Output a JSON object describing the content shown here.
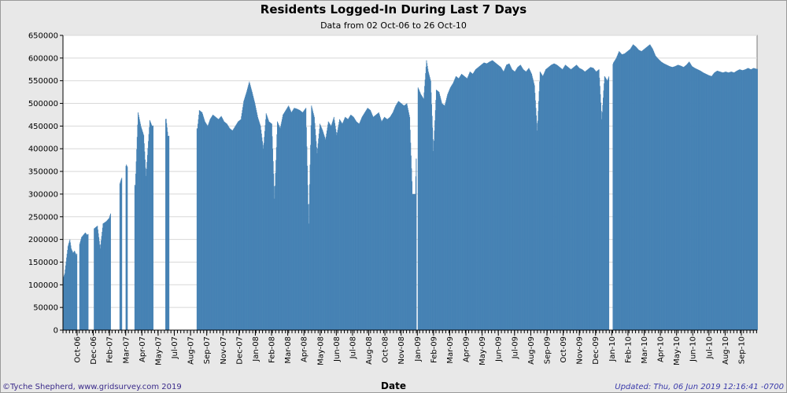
{
  "credit": "©Tyche Shepherd, www.gridsurvey.com 2019",
  "updated": "Updated: Thu, 06 Jun 2019 12:16:41 -0700",
  "colors": {
    "bar": "#4682b4",
    "plot_bg": "#ffffff",
    "page_bg": "#e8e8e8",
    "grid": "#d8d8d8"
  },
  "chart_data": {
    "type": "bar",
    "title": "Residents Logged-In During Last 7 Days",
    "subtitle": "Data from 02 Oct-06 to 26 Oct-10",
    "xlabel": "Date",
    "ylabel": "",
    "ylim": [
      0,
      650000
    ],
    "yticks": [
      0,
      50000,
      100000,
      150000,
      200000,
      250000,
      300000,
      350000,
      400000,
      450000,
      500000,
      550000,
      600000,
      650000
    ],
    "xticks": [
      "Oct-06",
      "Dec-06",
      "Feb-07",
      "Mar-07",
      "Apr-07",
      "May-07",
      "Jul-07",
      "Aug-07",
      "Sep-07",
      "Nov-07",
      "Dec-07",
      "Jan-08",
      "Feb-08",
      "Mar-08",
      "Apr-08",
      "May-08",
      "Jun-08",
      "Jul-08",
      "Aug-08",
      "Oct-08",
      "Nov-08",
      "Jan-09",
      "Feb-09",
      "Mar-09",
      "Apr-09",
      "May-09",
      "Jun-09",
      "Jul-09",
      "Aug-09",
      "Sep-09",
      "Oct-09",
      "Nov-09",
      "Dec-09",
      "Jan-10",
      "Feb-10",
      "Mar-10",
      "Apr-10",
      "May-10",
      "Jun-10",
      "Jul-10",
      "Aug-10",
      "Sep-10"
    ],
    "grid": true,
    "legend": "none",
    "x_range": [
      "2006-10-02",
      "2010-10-26"
    ],
    "points": [
      [
        "2006-10-02",
        115000
      ],
      [
        "2006-10-05",
        125000
      ],
      [
        "2006-10-09",
        160000
      ],
      [
        "2006-10-12",
        185000
      ],
      [
        "2006-10-16",
        200000
      ],
      [
        "2006-10-19",
        180000
      ],
      [
        "2006-10-23",
        170000
      ],
      [
        "2006-10-26",
        175000
      ],
      [
        "2006-10-30",
        165000
      ],
      [
        "2006-11-06",
        190000
      ],
      [
        "2006-11-10",
        205000
      ],
      [
        "2006-11-14",
        210000
      ],
      [
        "2006-11-18",
        215000
      ],
      [
        "2006-11-22",
        210000
      ],
      [
        "2006-12-08",
        225000
      ],
      [
        "2006-12-14",
        230000
      ],
      [
        "2006-12-20",
        180000
      ],
      [
        "2006-12-26",
        235000
      ],
      [
        "2007-01-02",
        240000
      ],
      [
        "2007-01-08",
        247000
      ],
      [
        "2007-02-02",
        330000
      ],
      [
        "2007-02-14",
        365000
      ],
      [
        "2007-03-05",
        318000
      ],
      [
        "2007-03-11",
        480000
      ],
      [
        "2007-03-17",
        450000
      ],
      [
        "2007-03-23",
        430000
      ],
      [
        "2007-03-28",
        340000
      ],
      [
        "2007-04-05",
        463000
      ],
      [
        "2007-04-10",
        450000
      ],
      [
        "2007-05-10",
        466000
      ],
      [
        "2007-05-14",
        428000
      ],
      [
        "2007-07-16",
        445000
      ],
      [
        "2007-07-20",
        485000
      ],
      [
        "2007-07-26",
        480000
      ],
      [
        "2007-08-01",
        460000
      ],
      [
        "2007-08-07",
        450000
      ],
      [
        "2007-08-12",
        465000
      ],
      [
        "2007-08-18",
        475000
      ],
      [
        "2007-08-24",
        470000
      ],
      [
        "2007-08-30",
        465000
      ],
      [
        "2007-09-05",
        472000
      ],
      [
        "2007-09-11",
        460000
      ],
      [
        "2007-09-17",
        455000
      ],
      [
        "2007-09-23",
        445000
      ],
      [
        "2007-09-29",
        440000
      ],
      [
        "2007-10-05",
        450000
      ],
      [
        "2007-10-11",
        460000
      ],
      [
        "2007-10-17",
        465000
      ],
      [
        "2007-10-23",
        505000
      ],
      [
        "2007-10-29",
        525000
      ],
      [
        "2007-11-04",
        548000
      ],
      [
        "2007-11-10",
        525000
      ],
      [
        "2007-11-16",
        500000
      ],
      [
        "2007-11-22",
        470000
      ],
      [
        "2007-11-28",
        450000
      ],
      [
        "2007-12-04",
        400000
      ],
      [
        "2007-12-10",
        478000
      ],
      [
        "2007-12-16",
        460000
      ],
      [
        "2007-12-22",
        455000
      ],
      [
        "2007-12-28",
        290000
      ],
      [
        "2008-01-03",
        460000
      ],
      [
        "2008-01-09",
        445000
      ],
      [
        "2008-01-15",
        475000
      ],
      [
        "2008-01-21",
        485000
      ],
      [
        "2008-01-27",
        495000
      ],
      [
        "2008-02-02",
        480000
      ],
      [
        "2008-02-08",
        490000
      ],
      [
        "2008-02-14",
        488000
      ],
      [
        "2008-02-20",
        485000
      ],
      [
        "2008-02-26",
        480000
      ],
      [
        "2008-03-04",
        490000
      ],
      [
        "2008-03-10",
        235000
      ],
      [
        "2008-03-16",
        495000
      ],
      [
        "2008-03-22",
        470000
      ],
      [
        "2008-03-28",
        390000
      ],
      [
        "2008-04-03",
        455000
      ],
      [
        "2008-04-09",
        440000
      ],
      [
        "2008-04-15",
        420000
      ],
      [
        "2008-04-21",
        460000
      ],
      [
        "2008-04-27",
        450000
      ],
      [
        "2008-05-03",
        470000
      ],
      [
        "2008-05-09",
        430000
      ],
      [
        "2008-05-15",
        465000
      ],
      [
        "2008-05-21",
        455000
      ],
      [
        "2008-05-27",
        470000
      ],
      [
        "2008-06-02",
        465000
      ],
      [
        "2008-06-08",
        475000
      ],
      [
        "2008-06-14",
        470000
      ],
      [
        "2008-06-20",
        460000
      ],
      [
        "2008-06-26",
        455000
      ],
      [
        "2008-07-02",
        470000
      ],
      [
        "2008-07-08",
        480000
      ],
      [
        "2008-07-14",
        490000
      ],
      [
        "2008-07-20",
        485000
      ],
      [
        "2008-07-26",
        470000
      ],
      [
        "2008-08-01",
        475000
      ],
      [
        "2008-08-07",
        480000
      ],
      [
        "2008-08-13",
        460000
      ],
      [
        "2008-08-19",
        470000
      ],
      [
        "2008-08-25",
        465000
      ],
      [
        "2008-08-31",
        470000
      ],
      [
        "2008-09-06",
        480000
      ],
      [
        "2008-09-12",
        495000
      ],
      [
        "2008-09-18",
        505000
      ],
      [
        "2008-09-24",
        500000
      ],
      [
        "2008-09-30",
        495000
      ],
      [
        "2008-10-06",
        500000
      ],
      [
        "2008-10-12",
        470000
      ],
      [
        "2008-10-18",
        300000
      ],
      [
        "2008-10-24",
        300000
      ],
      [
        "2008-10-30",
        535000
      ],
      [
        "2008-11-05",
        520000
      ],
      [
        "2008-11-11",
        510000
      ],
      [
        "2008-11-17",
        595000
      ],
      [
        "2008-11-21",
        570000
      ],
      [
        "2008-11-26",
        550000
      ],
      [
        "2008-12-02",
        395000
      ],
      [
        "2008-12-08",
        530000
      ],
      [
        "2008-12-14",
        525000
      ],
      [
        "2008-12-20",
        500000
      ],
      [
        "2008-12-26",
        495000
      ],
      [
        "2009-01-01",
        520000
      ],
      [
        "2009-01-07",
        535000
      ],
      [
        "2009-01-13",
        545000
      ],
      [
        "2009-01-19",
        560000
      ],
      [
        "2009-01-25",
        555000
      ],
      [
        "2009-01-31",
        565000
      ],
      [
        "2009-02-06",
        560000
      ],
      [
        "2009-02-12",
        555000
      ],
      [
        "2009-02-18",
        570000
      ],
      [
        "2009-02-24",
        565000
      ],
      [
        "2009-03-02",
        575000
      ],
      [
        "2009-03-08",
        580000
      ],
      [
        "2009-03-14",
        585000
      ],
      [
        "2009-03-20",
        590000
      ],
      [
        "2009-03-26",
        588000
      ],
      [
        "2009-04-01",
        592000
      ],
      [
        "2009-04-07",
        595000
      ],
      [
        "2009-04-13",
        590000
      ],
      [
        "2009-04-19",
        585000
      ],
      [
        "2009-04-25",
        580000
      ],
      [
        "2009-05-01",
        570000
      ],
      [
        "2009-05-07",
        585000
      ],
      [
        "2009-05-13",
        588000
      ],
      [
        "2009-05-19",
        575000
      ],
      [
        "2009-05-25",
        570000
      ],
      [
        "2009-05-31",
        580000
      ],
      [
        "2009-06-06",
        585000
      ],
      [
        "2009-06-12",
        575000
      ],
      [
        "2009-06-18",
        570000
      ],
      [
        "2009-06-24",
        578000
      ],
      [
        "2009-06-30",
        565000
      ],
      [
        "2009-07-06",
        540000
      ],
      [
        "2009-07-12",
        440000
      ],
      [
        "2009-07-18",
        570000
      ],
      [
        "2009-07-24",
        560000
      ],
      [
        "2009-07-30",
        575000
      ],
      [
        "2009-08-05",
        580000
      ],
      [
        "2009-08-11",
        585000
      ],
      [
        "2009-08-17",
        588000
      ],
      [
        "2009-08-23",
        585000
      ],
      [
        "2009-08-29",
        580000
      ],
      [
        "2009-09-04",
        575000
      ],
      [
        "2009-09-10",
        585000
      ],
      [
        "2009-09-16",
        580000
      ],
      [
        "2009-09-22",
        575000
      ],
      [
        "2009-09-28",
        580000
      ],
      [
        "2009-10-04",
        585000
      ],
      [
        "2009-10-10",
        578000
      ],
      [
        "2009-10-16",
        575000
      ],
      [
        "2009-10-22",
        570000
      ],
      [
        "2009-10-28",
        575000
      ],
      [
        "2009-11-03",
        580000
      ],
      [
        "2009-11-09",
        578000
      ],
      [
        "2009-11-15",
        570000
      ],
      [
        "2009-11-21",
        575000
      ],
      [
        "2009-11-27",
        465000
      ],
      [
        "2009-12-03",
        560000
      ],
      [
        "2009-12-09",
        550000
      ],
      [
        "2009-12-22",
        590000
      ],
      [
        "2009-12-28",
        600000
      ],
      [
        "2010-01-03",
        615000
      ],
      [
        "2010-01-09",
        608000
      ],
      [
        "2010-01-15",
        610000
      ],
      [
        "2010-01-21",
        615000
      ],
      [
        "2010-01-27",
        620000
      ],
      [
        "2010-02-02",
        630000
      ],
      [
        "2010-02-08",
        625000
      ],
      [
        "2010-02-14",
        618000
      ],
      [
        "2010-02-20",
        615000
      ],
      [
        "2010-02-26",
        620000
      ],
      [
        "2010-03-04",
        625000
      ],
      [
        "2010-03-10",
        630000
      ],
      [
        "2010-03-16",
        620000
      ],
      [
        "2010-03-22",
        605000
      ],
      [
        "2010-03-28",
        598000
      ],
      [
        "2010-04-03",
        592000
      ],
      [
        "2010-04-09",
        588000
      ],
      [
        "2010-04-15",
        585000
      ],
      [
        "2010-04-21",
        582000
      ],
      [
        "2010-04-27",
        580000
      ],
      [
        "2010-05-03",
        582000
      ],
      [
        "2010-05-09",
        585000
      ],
      [
        "2010-05-15",
        583000
      ],
      [
        "2010-05-21",
        580000
      ],
      [
        "2010-05-27",
        585000
      ],
      [
        "2010-06-02",
        592000
      ],
      [
        "2010-06-08",
        582000
      ],
      [
        "2010-06-14",
        578000
      ],
      [
        "2010-06-20",
        575000
      ],
      [
        "2010-06-26",
        572000
      ],
      [
        "2010-07-02",
        568000
      ],
      [
        "2010-07-08",
        565000
      ],
      [
        "2010-07-14",
        562000
      ],
      [
        "2010-07-20",
        560000
      ],
      [
        "2010-07-26",
        568000
      ],
      [
        "2010-08-01",
        572000
      ],
      [
        "2010-08-07",
        570000
      ],
      [
        "2010-08-13",
        568000
      ],
      [
        "2010-08-19",
        570000
      ],
      [
        "2010-08-25",
        568000
      ],
      [
        "2010-08-31",
        570000
      ],
      [
        "2010-09-06",
        568000
      ],
      [
        "2010-09-12",
        572000
      ],
      [
        "2010-09-18",
        575000
      ],
      [
        "2010-09-24",
        573000
      ],
      [
        "2010-09-30",
        575000
      ],
      [
        "2010-10-06",
        578000
      ],
      [
        "2010-10-12",
        575000
      ],
      [
        "2010-10-18",
        578000
      ],
      [
        "2010-10-24",
        576000
      ]
    ],
    "gaps": [
      [
        "2006-11-01",
        "2006-11-05"
      ],
      [
        "2006-11-25",
        "2006-12-06"
      ],
      [
        "2007-01-12",
        "2007-01-30"
      ],
      [
        "2007-02-05",
        "2007-02-12"
      ],
      [
        "2007-02-17",
        "2007-03-03"
      ],
      [
        "2007-04-13",
        "2007-05-08"
      ],
      [
        "2007-05-17",
        "2007-07-14"
      ],
      [
        "2008-10-27",
        "2008-10-29"
      ],
      [
        "2009-12-13",
        "2009-12-20"
      ]
    ]
  }
}
